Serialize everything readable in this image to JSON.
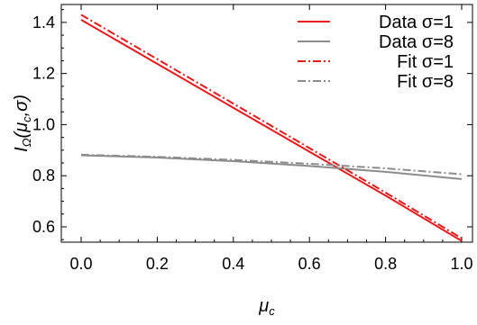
{
  "chart_data": {
    "type": "line",
    "xlabel": "μ_c",
    "ylabel": "I_Ω(μ_c,σ)",
    "xlim": [
      0.0,
      1.0
    ],
    "ylim": [
      0.54,
      1.47
    ],
    "xticks": [
      "0.0",
      "0.2",
      "0.4",
      "0.6",
      "0.8",
      "1.0"
    ],
    "yticks": [
      "0.6",
      "0.8",
      "1.0",
      "1.2",
      "1.4"
    ],
    "legend_position": "top-right",
    "series": [
      {
        "name": "Data σ=1",
        "color": "#e8191b",
        "style": "solid",
        "x": [
          0.0,
          0.2,
          0.4,
          0.6,
          0.8,
          1.0
        ],
        "y": [
          1.41,
          1.238,
          1.066,
          0.894,
          0.722,
          0.545
        ]
      },
      {
        "name": "Data σ=8",
        "color": "#8c8c8c",
        "style": "solid",
        "x": [
          0.0,
          0.2,
          0.4,
          0.6,
          0.8,
          1.0
        ],
        "y": [
          0.88,
          0.871,
          0.857,
          0.838,
          0.815,
          0.787
        ]
      },
      {
        "name": "Fit σ=1",
        "color": "#e8191b",
        "style": "dashdot",
        "x": [
          0.0,
          0.2,
          0.4,
          0.6,
          0.8,
          1.0
        ],
        "y": [
          1.43,
          1.256,
          1.082,
          0.908,
          0.734,
          0.555
        ]
      },
      {
        "name": "Fit σ=8",
        "color": "#8c8c8c",
        "style": "dashdot",
        "x": [
          0.0,
          0.2,
          0.4,
          0.6,
          0.8,
          1.0
        ],
        "y": [
          0.882,
          0.874,
          0.862,
          0.847,
          0.829,
          0.806
        ]
      }
    ]
  }
}
